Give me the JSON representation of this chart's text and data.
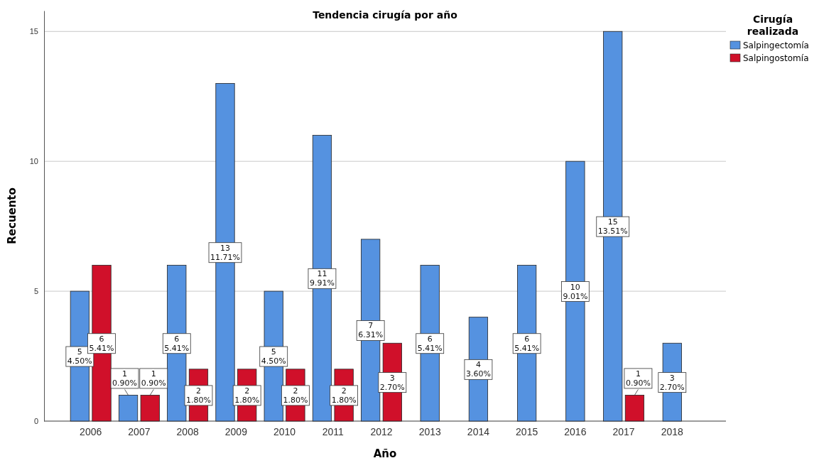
{
  "chart_data": {
    "type": "bar",
    "title": "Tendencia cirugía por año",
    "xlabel": "Año",
    "ylabel": "Recuento",
    "legend_title": "Cirugía realizada",
    "legend": "top right",
    "grid": "y",
    "categories": [
      "2006",
      "2007",
      "2008",
      "2009",
      "2010",
      "2011",
      "2012",
      "2013",
      "2014",
      "2015",
      "2016",
      "2017",
      "2018"
    ],
    "ylim": [
      0,
      15.8
    ],
    "yticks": [
      0,
      5,
      10,
      15
    ],
    "series": [
      {
        "name": "Salpingectomía",
        "color": "#5592e0",
        "values": [
          5,
          1,
          6,
          13,
          5,
          11,
          7,
          6,
          4,
          6,
          10,
          15,
          3
        ],
        "value_labels": [
          "5\n4.50%",
          "1\n0.90%",
          "6\n5.41%",
          "13\n11.71%",
          "5\n4.50%",
          "11\n9.91%",
          "7\n6.31%",
          "6\n5.41%",
          "4\n3.60%",
          "6\n5.41%",
          "10\n9.01%",
          "15\n13.51%",
          "3\n2.70%"
        ]
      },
      {
        "name": "Salpingostomía",
        "color": "#d0102a",
        "values": [
          6,
          1,
          2,
          2,
          2,
          2,
          3,
          null,
          null,
          null,
          null,
          1,
          null
        ],
        "value_labels": [
          "6\n5.41%",
          "1\n0.90%",
          "2\n1.80%",
          "2\n1.80%",
          "2\n1.80%",
          "2\n1.80%",
          "3\n2.70%",
          null,
          null,
          null,
          null,
          "1\n0.90%",
          null
        ]
      }
    ]
  }
}
